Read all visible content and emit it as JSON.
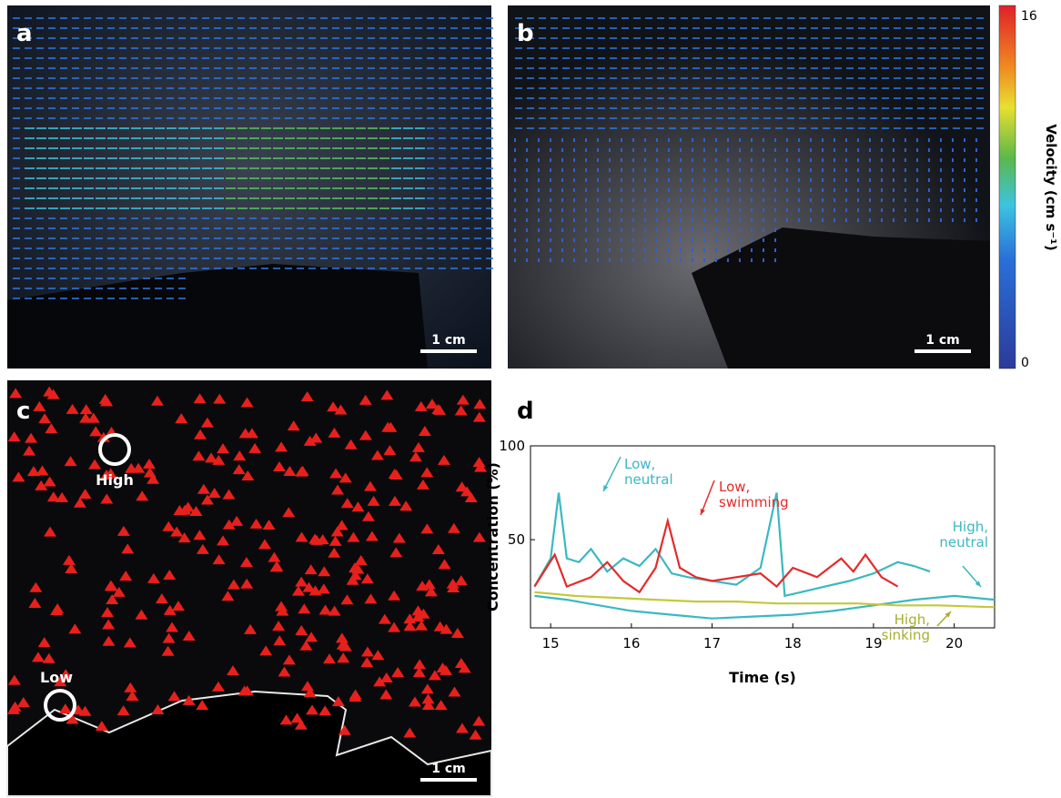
{
  "panels": [
    {
      "label": "a",
      "scale_bar": "1 cm"
    },
    {
      "label": "b",
      "scale_bar": "1 cm"
    },
    {
      "label": "c",
      "scale_bar": "1 cm",
      "markers": [
        "High",
        "Low"
      ]
    }
  ],
  "colorbar": {
    "title": "Velocity (cm s⁻¹)",
    "max": 16,
    "min": 0
  },
  "chart_data": {
    "type": "line",
    "panel_label": "d",
    "x_label": "Time (s)",
    "y_label": "Concentration (%)",
    "xlim": [
      14.75,
      20.5
    ],
    "ylim": [
      3,
      100
    ],
    "xticks": [
      15,
      16,
      17,
      18,
      19,
      20
    ],
    "yticks": [
      50,
      100
    ],
    "series": [
      {
        "name": "Low, neutral",
        "color": "#3bb8c0",
        "x": [
          14.8,
          15.0,
          15.1,
          15.2,
          15.35,
          15.5,
          15.7,
          15.9,
          16.1,
          16.3,
          16.5,
          16.7,
          17.0,
          17.3,
          17.6,
          17.8,
          17.9,
          18.1,
          18.4,
          18.7,
          19.0,
          19.3,
          19.5,
          19.7
        ],
        "values": [
          25,
          40,
          75,
          40,
          38,
          45,
          33,
          40,
          36,
          45,
          32,
          30,
          28,
          26,
          35,
          75,
          20,
          22,
          25,
          28,
          32,
          38,
          36,
          33
        ]
      },
      {
        "name": "Low, swimming",
        "color": "#e52a2a",
        "x": [
          14.8,
          15.05,
          15.2,
          15.5,
          15.7,
          15.9,
          16.1,
          16.3,
          16.45,
          16.6,
          16.8,
          17.0,
          17.3,
          17.6,
          17.8,
          18.0,
          18.3,
          18.6,
          18.75,
          18.9,
          19.1,
          19.3
        ],
        "values": [
          25,
          42,
          25,
          30,
          38,
          28,
          22,
          35,
          60,
          35,
          30,
          28,
          30,
          32,
          25,
          35,
          30,
          40,
          33,
          42,
          30,
          25
        ]
      },
      {
        "name": "High, neutral",
        "color": "#3bb8c0",
        "x": [
          14.8,
          15.2,
          15.6,
          16.0,
          16.5,
          17.0,
          17.5,
          18.0,
          18.5,
          19.0,
          19.5,
          20.0,
          20.5
        ],
        "values": [
          20,
          18,
          15,
          12,
          10,
          8,
          9,
          10,
          12,
          15,
          18,
          20,
          18
        ]
      },
      {
        "name": "High, sinking",
        "color": "#c3c93a",
        "x": [
          14.8,
          15.3,
          15.8,
          16.3,
          16.8,
          17.3,
          17.8,
          18.3,
          18.8,
          19.3,
          19.8,
          20.5
        ],
        "values": [
          22,
          20,
          19,
          18,
          17,
          17,
          16,
          16,
          16,
          15,
          15,
          14
        ]
      }
    ]
  }
}
